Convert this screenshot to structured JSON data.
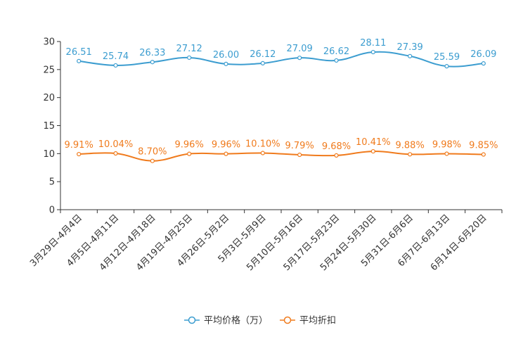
{
  "chart_data": {
    "type": "line",
    "title": "",
    "xlabel": "",
    "ylabel": "",
    "ylim": [
      0,
      30
    ],
    "yticks": [
      0,
      5,
      10,
      15,
      20,
      25,
      30
    ],
    "categories": [
      "3月29日-4月4日",
      "4月5日-4月11日",
      "4月12日-4月18日",
      "4月19日-4月25日",
      "4月26日-5月2日",
      "5月3日-5月9日",
      "5月10日-5月16日",
      "5月17日-5月23日",
      "5月24日-5月30日",
      "5月31日-6月6日",
      "6月7日-6月13日",
      "6月14日-6月20日"
    ],
    "series": [
      {
        "name": "平均价格（万）",
        "color": "#3c9dd0",
        "values": [
          26.51,
          25.74,
          26.33,
          27.12,
          26.0,
          26.12,
          27.09,
          26.62,
          28.11,
          27.39,
          25.59,
          26.09
        ],
        "labels": [
          "26.51",
          "25.74",
          "26.33",
          "27.12",
          "26.00",
          "26.12",
          "27.09",
          "26.62",
          "28.11",
          "27.39",
          "25.59",
          "26.09"
        ]
      },
      {
        "name": "平均折扣",
        "color": "#f07b1d",
        "values": [
          9.91,
          10.04,
          8.7,
          9.96,
          9.96,
          10.1,
          9.79,
          9.68,
          10.41,
          9.88,
          9.98,
          9.85
        ],
        "labels": [
          "9.91%",
          "10.04%",
          "8.70%",
          "9.96%",
          "9.96%",
          "10.10%",
          "9.79%",
          "9.68%",
          "10.41%",
          "9.88%",
          "9.98%",
          "9.85%"
        ]
      }
    ],
    "legend_position": "bottom-center",
    "grid": false
  }
}
